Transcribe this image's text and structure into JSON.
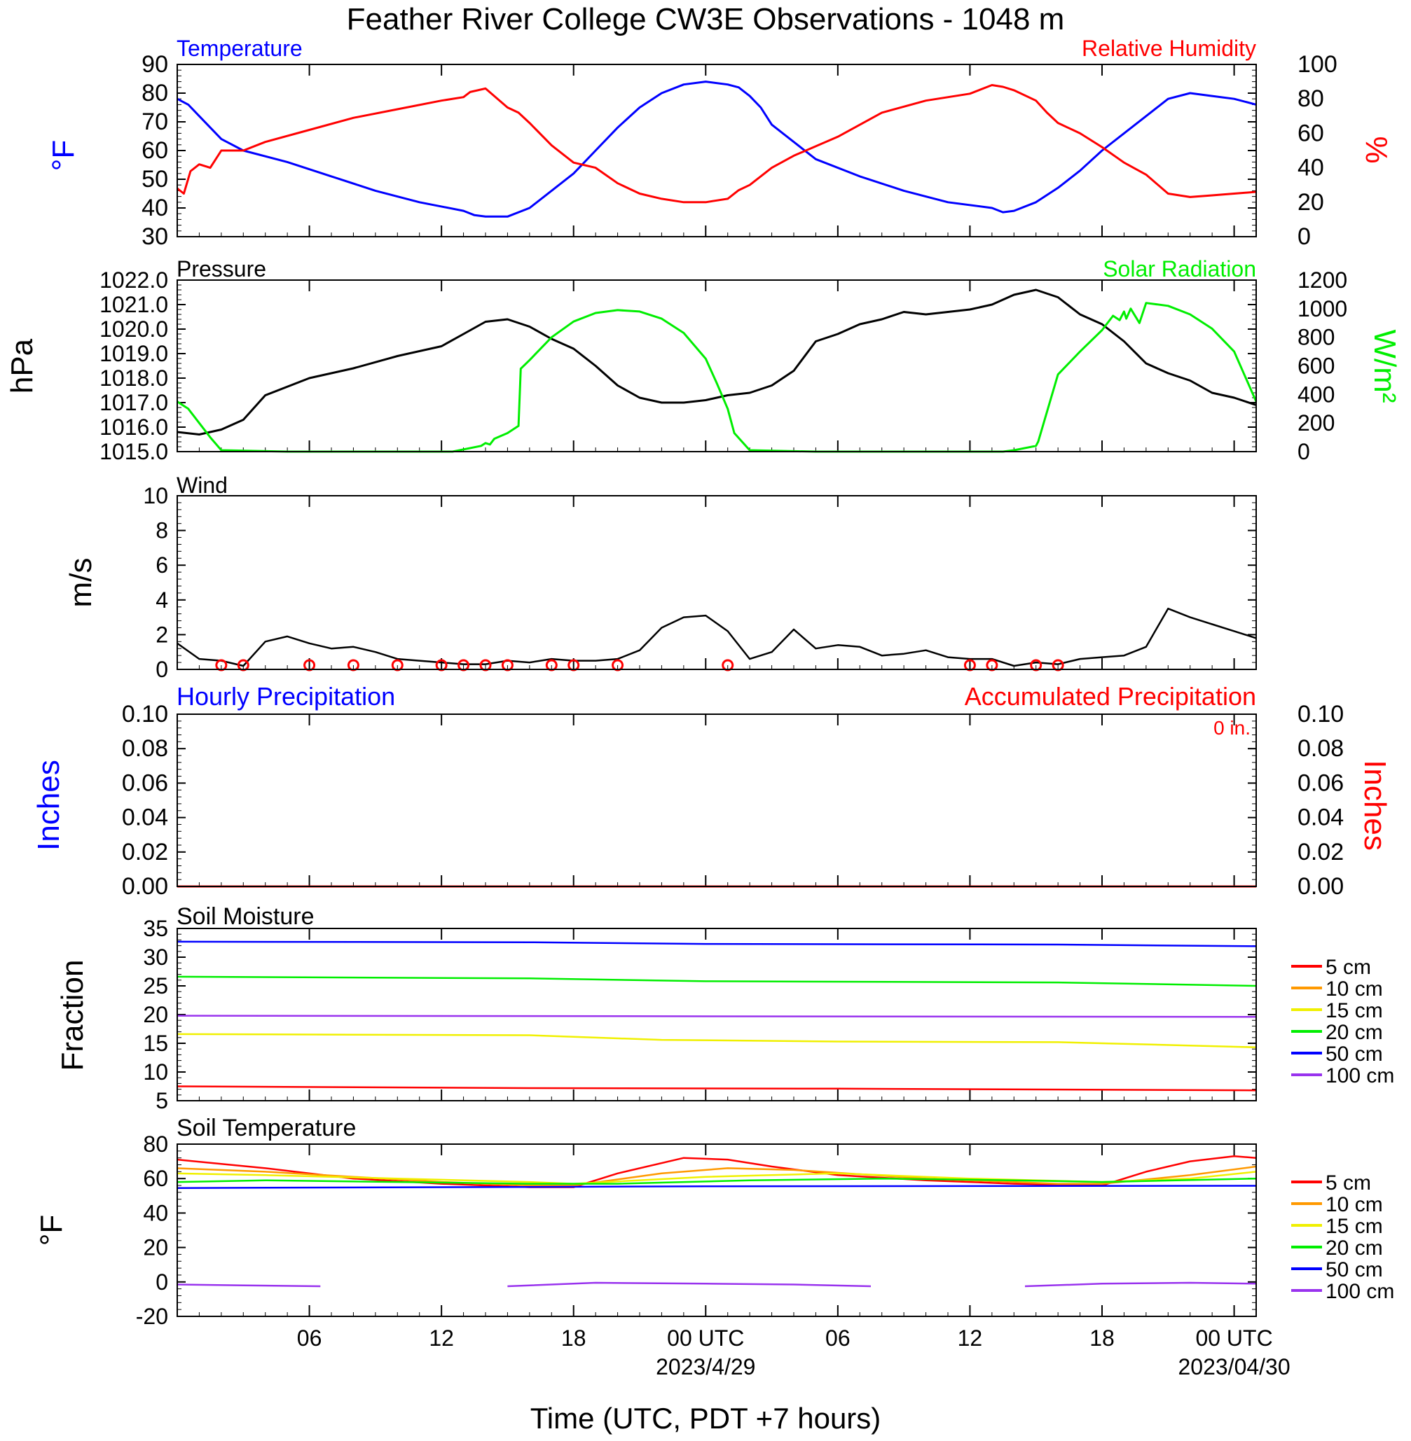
{
  "title": "Feather River College CW3E Observations - 1048 m",
  "xlabel": "Time (UTC, PDT +7 hours)",
  "x_ticks": [
    {
      "hour": 6,
      "label": "06"
    },
    {
      "hour": 12,
      "label": "12"
    },
    {
      "hour": 18,
      "label": "18"
    },
    {
      "hour": 24,
      "label": "00 UTC"
    },
    {
      "hour": 30,
      "label": "06"
    },
    {
      "hour": 36,
      "label": "12"
    },
    {
      "hour": 42,
      "label": "18"
    },
    {
      "hour": 48,
      "label": "00 UTC"
    }
  ],
  "date_labels": [
    {
      "hour": 24,
      "label": "2023/4/29"
    },
    {
      "hour": 48,
      "label": "2023/04/30"
    }
  ],
  "colors": {
    "blue": "#0000ff",
    "red": "#ff0000",
    "green": "#00ee00",
    "black": "#000000",
    "orange": "#ff9900",
    "yellow": "#f0f000",
    "purple": "#9933ee"
  },
  "panels": {
    "temp_rh": {
      "left_title": "Temperature",
      "right_title": "Relative Humidity",
      "left_unit": "°F",
      "right_unit": "%",
      "left_ticks": [
        "90",
        "80",
        "70",
        "60",
        "50",
        "40",
        "30"
      ],
      "right_ticks": [
        "100",
        "80",
        "60",
        "40",
        "20",
        "0"
      ]
    },
    "pressure_solar": {
      "left_title": "Pressure",
      "right_title": "Solar Radiation",
      "left_unit": "hPa",
      "right_unit": "W/m²",
      "left_ticks": [
        "1022.0",
        "1021.0",
        "1020.0",
        "1019.0",
        "1018.0",
        "1017.0",
        "1016.0",
        "1015.0"
      ],
      "right_ticks": [
        "1200",
        "1000",
        "800",
        "600",
        "400",
        "200",
        "0"
      ]
    },
    "wind": {
      "left_title": "Wind",
      "left_unit": "m/s",
      "left_ticks": [
        "10",
        "8",
        "6",
        "4",
        "2",
        "0"
      ]
    },
    "precip": {
      "left_title": "Hourly Precipitation",
      "right_title": "Accumulated Precipitation",
      "total": "0 in.",
      "left_unit": "Inches",
      "right_unit": "Inches",
      "left_ticks": [
        "0.10",
        "0.08",
        "0.06",
        "0.04",
        "0.02",
        "0.00"
      ],
      "right_ticks": [
        "0.10",
        "0.08",
        "0.06",
        "0.04",
        "0.02",
        "0.00"
      ]
    },
    "soil_moisture": {
      "left_title": "Soil Moisture",
      "left_unit": "Fraction",
      "left_ticks": [
        "35",
        "30",
        "25",
        "20",
        "15",
        "10",
        "5"
      ],
      "legend": [
        "5 cm",
        "10 cm",
        "15 cm",
        "20 cm",
        "50 cm",
        "100 cm"
      ]
    },
    "soil_temp": {
      "left_title": "Soil Temperature",
      "left_unit": "°F",
      "left_ticks": [
        "80",
        "60",
        "40",
        "20",
        "0",
        "-20"
      ],
      "legend": [
        "5 cm",
        "10 cm",
        "15 cm",
        "20 cm",
        "50 cm",
        "100 cm"
      ]
    }
  },
  "chart_data": [
    {
      "type": "line",
      "title": "Temperature / Relative Humidity",
      "xlim": [
        0,
        49
      ],
      "ylim": [
        30,
        90
      ],
      "y2lim": [
        0,
        100
      ],
      "series": [
        {
          "name": "Temperature",
          "axis": "left",
          "color": "#0000ff",
          "x": [
            0,
            0.5,
            1,
            2,
            3,
            5,
            7,
            9,
            11,
            13,
            13.5,
            14,
            15,
            16,
            17,
            18,
            19,
            20,
            21,
            22,
            23,
            24,
            25,
            25.5,
            26,
            26.5,
            27,
            28,
            29,
            31,
            33,
            35,
            37,
            37.5,
            38,
            39,
            40,
            41,
            42,
            43,
            44,
            45,
            46,
            47,
            48,
            49
          ],
          "y": [
            78,
            76,
            72,
            64,
            60,
            56,
            51,
            46,
            42,
            39,
            37.5,
            37,
            37,
            40,
            46,
            52,
            60,
            68,
            75,
            80,
            83,
            84,
            83,
            82,
            79,
            75,
            69,
            63,
            57,
            51,
            46,
            42,
            40,
            38.5,
            39,
            42,
            47,
            53,
            60,
            66,
            72,
            78,
            80,
            79,
            78,
            76
          ]
        },
        {
          "name": "Relative Humidity",
          "axis": "right",
          "color": "#ff0000",
          "x": [
            0,
            0.3,
            0.6,
            1,
            1.5,
            2,
            3,
            4,
            6,
            8,
            10,
            12,
            13,
            13.3,
            14,
            15,
            15.5,
            16,
            17,
            18,
            19,
            20,
            21,
            22,
            23,
            24,
            24.5,
            25,
            25.5,
            26,
            27,
            28,
            30,
            32,
            34,
            36,
            37,
            37.5,
            38,
            39,
            39.5,
            40,
            41,
            42,
            43,
            44,
            45,
            46,
            47,
            48,
            49
          ],
          "y": [
            28,
            25,
            38,
            42,
            40,
            50,
            50,
            55,
            62,
            69,
            74,
            79,
            81,
            84,
            86,
            75,
            72,
            66,
            53,
            43,
            40,
            31,
            25,
            22,
            20,
            20,
            21,
            22,
            27,
            30,
            40,
            47,
            58,
            72,
            79,
            83,
            88,
            87,
            85,
            79,
            72,
            66,
            60,
            52,
            43,
            36,
            25,
            23,
            24,
            25,
            26
          ]
        }
      ]
    },
    {
      "type": "line",
      "title": "Pressure / Solar Radiation",
      "xlim": [
        0,
        49
      ],
      "ylim": [
        1015,
        1022
      ],
      "y2lim": [
        0,
        1200
      ],
      "series": [
        {
          "name": "Pressure",
          "axis": "left",
          "color": "#000000",
          "x": [
            0,
            1,
            2,
            3,
            4,
            6,
            8,
            10,
            12,
            13,
            14,
            15,
            16,
            17,
            18,
            19,
            20,
            21,
            22,
            23,
            24,
            25,
            26,
            27,
            28,
            29,
            30,
            31,
            32,
            33,
            34,
            35,
            36,
            37,
            38,
            39,
            40,
            41,
            42,
            43,
            44,
            45,
            46,
            47,
            48,
            49
          ],
          "y": [
            1015.8,
            1015.7,
            1015.9,
            1016.3,
            1017.3,
            1018.0,
            1018.4,
            1018.9,
            1019.3,
            1019.8,
            1020.3,
            1020.4,
            1020.1,
            1019.6,
            1019.2,
            1018.5,
            1017.7,
            1017.2,
            1017.0,
            1017.0,
            1017.1,
            1017.3,
            1017.4,
            1017.7,
            1018.3,
            1019.5,
            1019.8,
            1020.2,
            1020.4,
            1020.7,
            1020.6,
            1020.7,
            1020.8,
            1021.0,
            1021.4,
            1021.6,
            1021.3,
            1020.6,
            1020.2,
            1019.5,
            1018.6,
            1018.2,
            1017.9,
            1017.4,
            1017.2,
            1016.9
          ]
        },
        {
          "name": "Solar Radiation",
          "axis": "right",
          "color": "#00ee00",
          "x": [
            0,
            0.5,
            1,
            1.5,
            2,
            5,
            10,
            12.5,
            13.8,
            14,
            14.2,
            14.4,
            15,
            15.5,
            15.6,
            16,
            17,
            18,
            19,
            20,
            21,
            22,
            23,
            24,
            24.5,
            25,
            25.3,
            26,
            29,
            35,
            37.5,
            38,
            39,
            39.1,
            40,
            41,
            42,
            42.5,
            42.8,
            43,
            43.1,
            43.3,
            43.7,
            44,
            45,
            46,
            47,
            48,
            49
          ],
          "y": [
            350,
            300,
            200,
            100,
            10,
            0,
            0,
            0,
            40,
            60,
            50,
            90,
            130,
            180,
            580,
            640,
            800,
            910,
            970,
            990,
            980,
            930,
            830,
            650,
            480,
            300,
            130,
            10,
            0,
            0,
            0,
            10,
            40,
            70,
            540,
            700,
            850,
            950,
            920,
            980,
            930,
            1000,
            900,
            1040,
            1020,
            960,
            860,
            700,
            350
          ]
        }
      ]
    },
    {
      "type": "line",
      "title": "Wind",
      "xlim": [
        0,
        49
      ],
      "ylim": [
        0,
        10
      ],
      "series": [
        {
          "name": "Wind",
          "color": "#000000",
          "x": [
            0,
            1,
            2,
            3,
            4,
            5,
            6,
            7,
            8,
            9,
            10,
            11,
            12,
            13,
            14,
            15,
            16,
            17,
            18,
            19,
            20,
            21,
            22,
            23,
            24,
            25,
            26,
            27,
            28,
            29,
            30,
            31,
            32,
            33,
            34,
            35,
            36,
            37,
            38,
            39,
            40,
            41,
            42,
            43,
            44,
            45,
            46,
            47,
            48,
            49
          ],
          "y": [
            1.5,
            0.6,
            0.5,
            0.2,
            1.6,
            1.9,
            1.5,
            1.2,
            1.3,
            1.0,
            0.6,
            0.5,
            0.4,
            0.3,
            0.3,
            0.5,
            0.4,
            0.6,
            0.5,
            0.5,
            0.6,
            1.1,
            2.4,
            3.0,
            3.1,
            2.2,
            0.6,
            1.0,
            2.3,
            1.2,
            1.4,
            1.3,
            0.8,
            0.9,
            1.1,
            0.7,
            0.6,
            0.6,
            0.2,
            0.4,
            0.3,
            0.6,
            0.7,
            0.8,
            1.3,
            3.5,
            3.0,
            2.6,
            2.2,
            1.8
          ]
        }
      ]
    },
    {
      "type": "line",
      "title": "Hourly Precipitation / Accumulated Precipitation",
      "xlim": [
        0,
        49
      ],
      "ylim": [
        0,
        0.1
      ],
      "y2lim": [
        0,
        0.1
      ],
      "series": [
        {
          "name": "Accumulated Precipitation",
          "axis": "right",
          "color": "#ff0000",
          "x": [
            0,
            49
          ],
          "y": [
            0,
            0
          ]
        }
      ]
    },
    {
      "type": "line",
      "title": "Soil Moisture",
      "xlim": [
        0,
        49
      ],
      "ylim": [
        5,
        35
      ],
      "series": [
        {
          "name": "5 cm",
          "color": "#ff0000",
          "x": [
            0,
            16,
            30,
            49
          ],
          "y": [
            7.5,
            7.2,
            7.1,
            6.8
          ]
        },
        {
          "name": "15 cm",
          "color": "#f0f000",
          "x": [
            0,
            16,
            22,
            30,
            40,
            49
          ],
          "y": [
            16.6,
            16.4,
            15.6,
            15.3,
            15.2,
            14.3
          ]
        },
        {
          "name": "20 cm",
          "color": "#00ee00",
          "x": [
            0,
            16,
            24,
            40,
            49
          ],
          "y": [
            26.6,
            26.3,
            25.8,
            25.6,
            25.0
          ]
        },
        {
          "name": "50 cm",
          "color": "#0000ff",
          "x": [
            0,
            16,
            24,
            40,
            49
          ],
          "y": [
            32.7,
            32.6,
            32.3,
            32.2,
            31.9
          ]
        },
        {
          "name": "100 cm",
          "color": "#9933ee",
          "x": [
            0,
            49
          ],
          "y": [
            19.8,
            19.6
          ]
        }
      ]
    },
    {
      "type": "line",
      "title": "Soil Temperature",
      "xlim": [
        0,
        49
      ],
      "ylim": [
        -20,
        80
      ],
      "series": [
        {
          "name": "5 cm",
          "color": "#ff0000",
          "x": [
            0,
            4,
            8,
            12,
            16,
            18,
            20,
            23,
            25,
            27,
            30,
            34,
            38,
            42,
            44,
            46,
            48,
            49
          ],
          "y": [
            71,
            66,
            60,
            57,
            55,
            55,
            63,
            72,
            71,
            67,
            62,
            59,
            57,
            56,
            64,
            70,
            73,
            72
          ]
        },
        {
          "name": "10 cm",
          "color": "#ff9900",
          "x": [
            0,
            4,
            8,
            12,
            16,
            18,
            22,
            25,
            28,
            34,
            40,
            42,
            46,
            49
          ],
          "y": [
            66,
            64,
            61,
            58,
            56,
            56,
            63,
            66,
            65,
            60,
            57,
            57,
            62,
            67
          ]
        },
        {
          "name": "15 cm",
          "color": "#f0f000",
          "x": [
            0,
            4,
            10,
            16,
            18,
            24,
            30,
            36,
            42,
            46,
            49
          ],
          "y": [
            63,
            62,
            60,
            58,
            57,
            61,
            63,
            60,
            58,
            60,
            64
          ]
        },
        {
          "name": "20 cm",
          "color": "#00ee00",
          "x": [
            0,
            4,
            10,
            16,
            20,
            26,
            32,
            38,
            42,
            49
          ],
          "y": [
            58,
            59,
            58,
            57,
            57,
            59,
            60,
            59,
            58,
            60
          ]
        },
        {
          "name": "50 cm",
          "color": "#0000ff",
          "x": [
            0,
            24,
            49
          ],
          "y": [
            54.5,
            55.5,
            55.8
          ]
        },
        {
          "name": "100 cm",
          "color": "#9933ee",
          "segments": [
            {
              "x": [
                0,
                3,
                6.5
              ],
              "y": [
                -1.5,
                -2,
                -2.5
              ]
            },
            {
              "x": [
                15,
                19,
                24,
                28,
                31.5
              ],
              "y": [
                -2.5,
                -0.5,
                -1,
                -1.5,
                -2.5
              ]
            },
            {
              "x": [
                38.5,
                42,
                46,
                49
              ],
              "y": [
                -2.5,
                -1,
                -0.5,
                -1
              ]
            }
          ]
        }
      ]
    }
  ]
}
